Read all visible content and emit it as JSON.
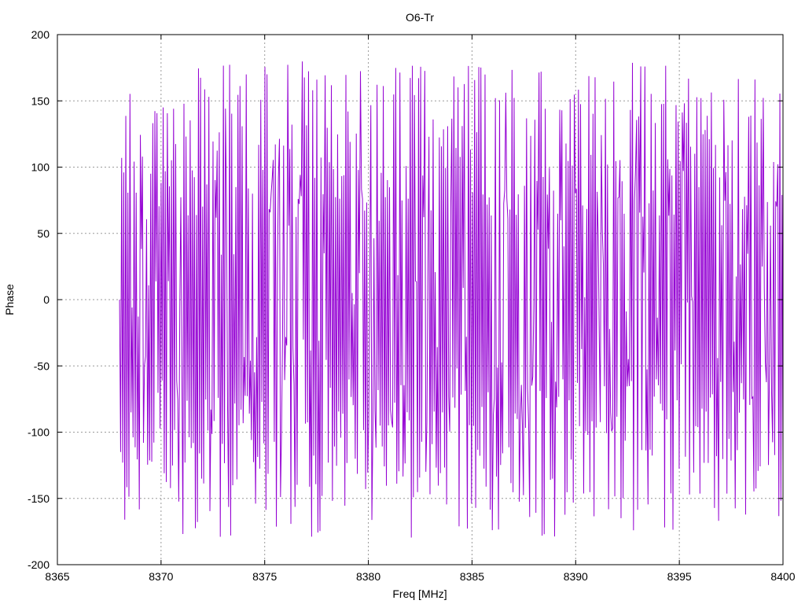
{
  "chart_data": {
    "type": "line",
    "title": "O6-Tr",
    "xlabel": "Freq [MHz]",
    "ylabel": "Phase",
    "xlim": [
      8365,
      8400
    ],
    "ylim": [
      -200,
      200
    ],
    "x_ticks": [
      "8365",
      "8370",
      "8375",
      "8380",
      "8385",
      "8390",
      "8395",
      "8400"
    ],
    "y_ticks": [
      "200",
      "150",
      "100",
      "50",
      "0",
      "-50",
      "-100",
      "-150",
      "-200"
    ],
    "grid": true,
    "legend": "none",
    "series": [
      {
        "color": "#9400d3",
        "x_start": 8368.0,
        "x_end": 8400.0,
        "samples": 640,
        "range": [
          -180,
          180
        ],
        "description_values": [
          0,
          -115,
          107,
          -123,
          96,
          -166,
          179,
          -103,
          155,
          -22,
          82,
          150,
          -170,
          110,
          172,
          -178,
          60,
          174,
          -140,
          135,
          -175,
          176,
          25,
          -158,
          169,
          -170,
          154,
          -172,
          165,
          178,
          -178,
          170,
          -150,
          175,
          -166,
          179,
          -160,
          176,
          -180,
          177,
          -170,
          172,
          -162,
          165,
          -175,
          171,
          -155,
          168,
          -180,
          174,
          -165,
          160,
          -170,
          178,
          -150,
          167,
          -172,
          176,
          -175,
          176,
          -175,
          160,
          -160,
          178,
          -165,
          172,
          -178,
          50
        ]
      }
    ]
  }
}
